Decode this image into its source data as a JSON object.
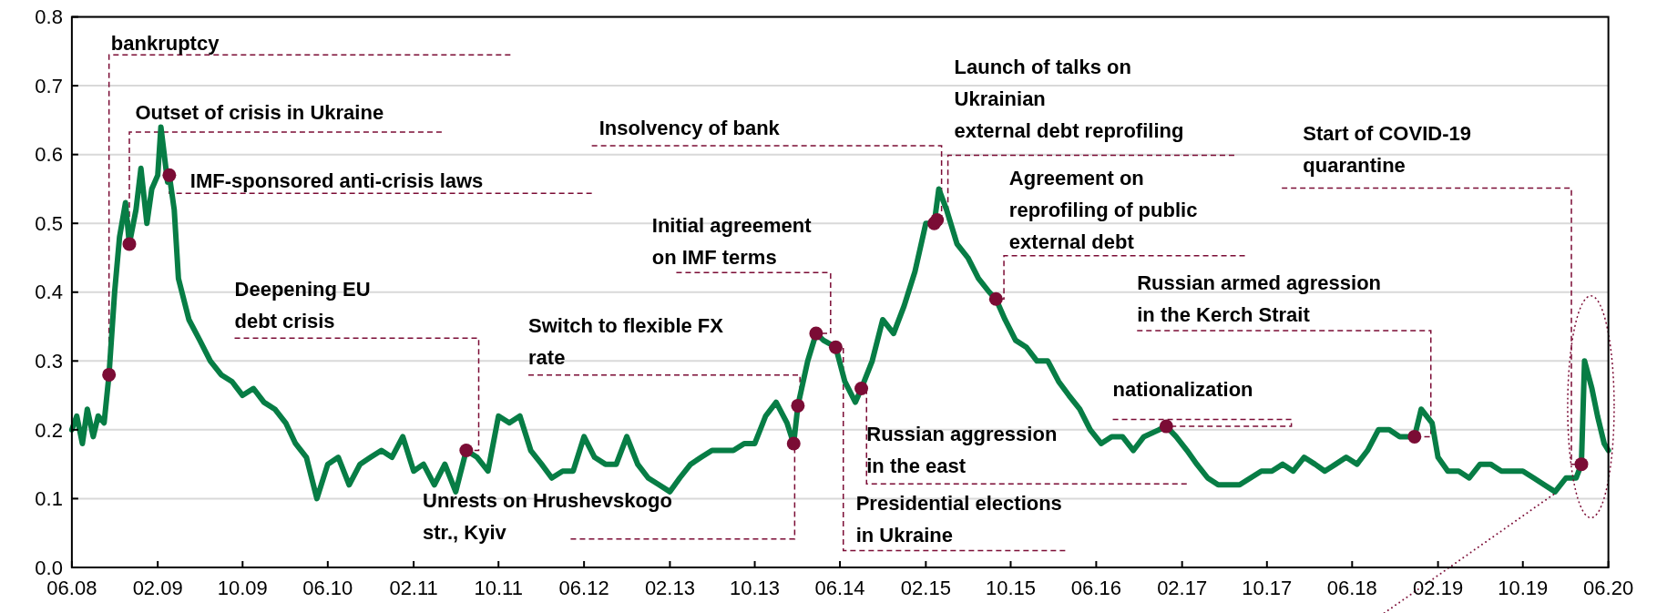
{
  "chart_data": {
    "type": "line",
    "xlim": [
      "2008-06",
      "2020-06"
    ],
    "ylim": [
      0,
      0.8
    ],
    "grid": "y",
    "xticks": [
      {
        "value": "2008-06",
        "label": "06.08"
      },
      {
        "value": "2009-02",
        "label": "02.09"
      },
      {
        "value": "2009-10",
        "label": "10.09"
      },
      {
        "value": "2010-06",
        "label": "06.10"
      },
      {
        "value": "2011-02",
        "label": "02.11"
      },
      {
        "value": "2011-10",
        "label": "10.11"
      },
      {
        "value": "2012-06",
        "label": "06.12"
      },
      {
        "value": "2013-02",
        "label": "02.13"
      },
      {
        "value": "2013-10",
        "label": "10.13"
      },
      {
        "value": "2014-06",
        "label": "06.14"
      },
      {
        "value": "2015-02",
        "label": "02.15"
      },
      {
        "value": "2015-10",
        "label": "10.15"
      },
      {
        "value": "2016-06",
        "label": "06.16"
      },
      {
        "value": "2017-02",
        "label": "02.17"
      },
      {
        "value": "2017-10",
        "label": "10.17"
      },
      {
        "value": "2018-06",
        "label": "06.18"
      },
      {
        "value": "2019-02",
        "label": "02.19"
      },
      {
        "value": "2019-10",
        "label": "10.19"
      },
      {
        "value": "2020-06",
        "label": "06.20"
      }
    ],
    "yticks": [
      {
        "value": 0,
        "label": "0.0"
      },
      {
        "value": 0.1,
        "label": "0.1"
      },
      {
        "value": 0.2,
        "label": "0.2"
      },
      {
        "value": 0.3,
        "label": "0.3"
      },
      {
        "value": 0.4,
        "label": "0.4"
      },
      {
        "value": 0.5,
        "label": "0.5"
      },
      {
        "value": 0.6,
        "label": "0.6"
      },
      {
        "value": 0.7,
        "label": "0.7"
      },
      {
        "value": 0.8,
        "label": "0.8"
      }
    ],
    "series": [
      {
        "type": "line",
        "color": "#077d45",
        "x": [
          "2008-06-01",
          "2008-06-15",
          "2008-07-01",
          "2008-07-15",
          "2008-08-01",
          "2008-08-15",
          "2008-09-01",
          "2008-09-15",
          "2008-10-01",
          "2008-10-15",
          "2008-11-01",
          "2008-11-12",
          "2008-12-01",
          "2008-12-15",
          "2009-01-01",
          "2009-01-15",
          "2009-02-01",
          "2009-02-10",
          "2009-03-01",
          "2009-03-06",
          "2009-03-20",
          "2009-04-01",
          "2009-05-01",
          "2009-06-01",
          "2009-07-01",
          "2009-08-01",
          "2009-09-01",
          "2009-10-01",
          "2009-11-01",
          "2009-12-01",
          "2010-01-01",
          "2010-02-01",
          "2010-03-01",
          "2010-04-01",
          "2010-05-01",
          "2010-06-01",
          "2010-07-01",
          "2010-08-01",
          "2010-09-01",
          "2010-10-01",
          "2010-11-01",
          "2010-12-01",
          "2011-01-01",
          "2011-02-01",
          "2011-03-01",
          "2011-04-01",
          "2011-05-01",
          "2011-06-01",
          "2011-07-01",
          "2011-08-01",
          "2011-09-01",
          "2011-10-01",
          "2011-11-01",
          "2011-12-01",
          "2012-01-01",
          "2012-02-01",
          "2012-03-01",
          "2012-04-01",
          "2012-05-01",
          "2012-06-01",
          "2012-07-01",
          "2012-08-01",
          "2012-09-01",
          "2012-10-01",
          "2012-11-01",
          "2012-12-01",
          "2013-01-01",
          "2013-02-01",
          "2013-03-01",
          "2013-04-01",
          "2013-05-01",
          "2013-06-01",
          "2013-07-01",
          "2013-08-01",
          "2013-09-01",
          "2013-10-01",
          "2013-11-01",
          "2013-12-01",
          "2014-01-01",
          "2014-01-20",
          "2014-02-01",
          "2014-03-01",
          "2014-03-25",
          "2014-04-15",
          "2014-05-20",
          "2014-06-15",
          "2014-07-15",
          "2014-08-01",
          "2014-09-01",
          "2014-10-01",
          "2014-11-01",
          "2014-12-01",
          "2015-01-01",
          "2015-02-01",
          "2015-02-25",
          "2015-03-10",
          "2015-04-01",
          "2015-05-01",
          "2015-06-01",
          "2015-07-01",
          "2015-08-01",
          "2015-08-20",
          "2015-09-15",
          "2015-10-15",
          "2015-11-15",
          "2015-12-15",
          "2016-01-15",
          "2016-02-15",
          "2016-03-15",
          "2016-04-15",
          "2016-05-15",
          "2016-06-15",
          "2016-07-15",
          "2016-08-15",
          "2016-09-15",
          "2016-10-15",
          "2016-12-18",
          "2017-01-15",
          "2017-02-15",
          "2017-03-15",
          "2017-04-15",
          "2017-05-15",
          "2017-06-15",
          "2017-07-15",
          "2017-08-15",
          "2017-09-15",
          "2017-10-15",
          "2017-11-15",
          "2017-12-15",
          "2018-01-15",
          "2018-02-15",
          "2018-03-15",
          "2018-04-15",
          "2018-05-15",
          "2018-06-15",
          "2018-07-15",
          "2018-08-15",
          "2018-09-15",
          "2018-10-15",
          "2018-11-26",
          "2018-12-15",
          "2019-01-15",
          "2019-02-01",
          "2019-03-01",
          "2019-04-01",
          "2019-05-01",
          "2019-06-01",
          "2019-07-01",
          "2019-08-01",
          "2019-09-01",
          "2019-10-01",
          "2019-11-01",
          "2019-12-01",
          "2020-01-01",
          "2020-02-01",
          "2020-03-01",
          "2020-03-16",
          "2020-03-25",
          "2020-04-15",
          "2020-05-01",
          "2020-05-20",
          "2020-06-01"
        ],
        "values": [
          0.2,
          0.22,
          0.18,
          0.23,
          0.19,
          0.22,
          0.21,
          0.28,
          0.4,
          0.48,
          0.53,
          0.47,
          0.52,
          0.58,
          0.5,
          0.55,
          0.57,
          0.64,
          0.56,
          0.57,
          0.52,
          0.42,
          0.36,
          0.33,
          0.3,
          0.28,
          0.27,
          0.25,
          0.26,
          0.24,
          0.23,
          0.21,
          0.18,
          0.16,
          0.1,
          0.15,
          0.16,
          0.12,
          0.15,
          0.16,
          0.17,
          0.16,
          0.19,
          0.14,
          0.15,
          0.12,
          0.15,
          0.11,
          0.17,
          0.16,
          0.14,
          0.22,
          0.21,
          0.22,
          0.17,
          0.15,
          0.13,
          0.14,
          0.14,
          0.19,
          0.16,
          0.15,
          0.15,
          0.19,
          0.15,
          0.13,
          0.12,
          0.11,
          0.13,
          0.15,
          0.16,
          0.17,
          0.17,
          0.17,
          0.18,
          0.18,
          0.22,
          0.24,
          0.21,
          0.18,
          0.235,
          0.3,
          0.34,
          0.33,
          0.32,
          0.27,
          0.24,
          0.26,
          0.3,
          0.36,
          0.34,
          0.38,
          0.43,
          0.5,
          0.5,
          0.55,
          0.52,
          0.47,
          0.45,
          0.42,
          0.4,
          0.39,
          0.36,
          0.33,
          0.32,
          0.3,
          0.3,
          0.27,
          0.25,
          0.23,
          0.2,
          0.18,
          0.19,
          0.19,
          0.17,
          0.19,
          0.205,
          0.19,
          0.17,
          0.15,
          0.13,
          0.12,
          0.12,
          0.12,
          0.13,
          0.14,
          0.14,
          0.15,
          0.14,
          0.16,
          0.15,
          0.14,
          0.15,
          0.16,
          0.15,
          0.17,
          0.2,
          0.2,
          0.19,
          0.19,
          0.23,
          0.21,
          0.16,
          0.14,
          0.14,
          0.13,
          0.15,
          0.15,
          0.14,
          0.14,
          0.14,
          0.13,
          0.12,
          0.11,
          0.13,
          0.13,
          0.15,
          0.3,
          0.26,
          0.22,
          0.18,
          0.17
        ]
      },
      {
        "type": "scatter",
        "color": "#7b0c35",
        "marker": "circle",
        "x": [
          "2008-09-15",
          "2008-11-12",
          "2009-03-06",
          "2011-07-01",
          "2014-01-20",
          "2014-02-01",
          "2014-03-25",
          "2014-05-20",
          "2014-08-01",
          "2015-02-25",
          "2015-03-05",
          "2015-08-20",
          "2016-12-18",
          "2018-11-26",
          "2020-03-16"
        ],
        "values": [
          0.28,
          0.47,
          0.57,
          0.17,
          0.18,
          0.235,
          0.34,
          0.32,
          0.26,
          0.5,
          0.505,
          0.39,
          0.205,
          0.19,
          0.15
        ]
      }
    ],
    "annotations": [
      {
        "text": "bankruptcy",
        "x": "2008-09-15",
        "y": 0.28
      },
      {
        "text": "Outset of crisis in Ukraine",
        "x": "2008-11-12",
        "y": 0.47
      },
      {
        "text": "IMF-sponsored anti-crisis laws",
        "x": "2009-03-06",
        "y": 0.57
      },
      {
        "text": "Deepening EU\ndebt crisis",
        "x": "2011-07-01",
        "y": 0.17
      },
      {
        "text": "Unrests on Hrushevskogo\nstr., Kyiv",
        "x": "2014-01-20",
        "y": 0.18
      },
      {
        "text": "Switch to flexible FX\nrate",
        "x": "2014-02-01",
        "y": 0.235
      },
      {
        "text": "Initial agreement\non IMF terms",
        "x": "2014-03-25",
        "y": 0.34
      },
      {
        "text": "Presidential elections\nin Ukraine",
        "x": "2014-05-20",
        "y": 0.32
      },
      {
        "text": "Russian aggression\nin the east",
        "x": "2014-08-01",
        "y": 0.26
      },
      {
        "text": "Insolvency of bank",
        "x": "2015-02-25",
        "y": 0.5
      },
      {
        "text": "Launch of talks on\nUkrainian\nexternal debt reprofiling",
        "x": "2015-03-05",
        "y": 0.505
      },
      {
        "text": "Agreement on\nreprofiling of public\nexternal debt",
        "x": "2015-08-20",
        "y": 0.39
      },
      {
        "text": "nationalization",
        "x": "2016-12-18",
        "y": 0.205
      },
      {
        "text": "Russian armed agression\nin the Kerch Strait",
        "x": "2018-11-26",
        "y": 0.19
      },
      {
        "text": "Start of COVID-19\nquarantine",
        "x": "2020-03-16",
        "y": 0.15
      }
    ]
  }
}
